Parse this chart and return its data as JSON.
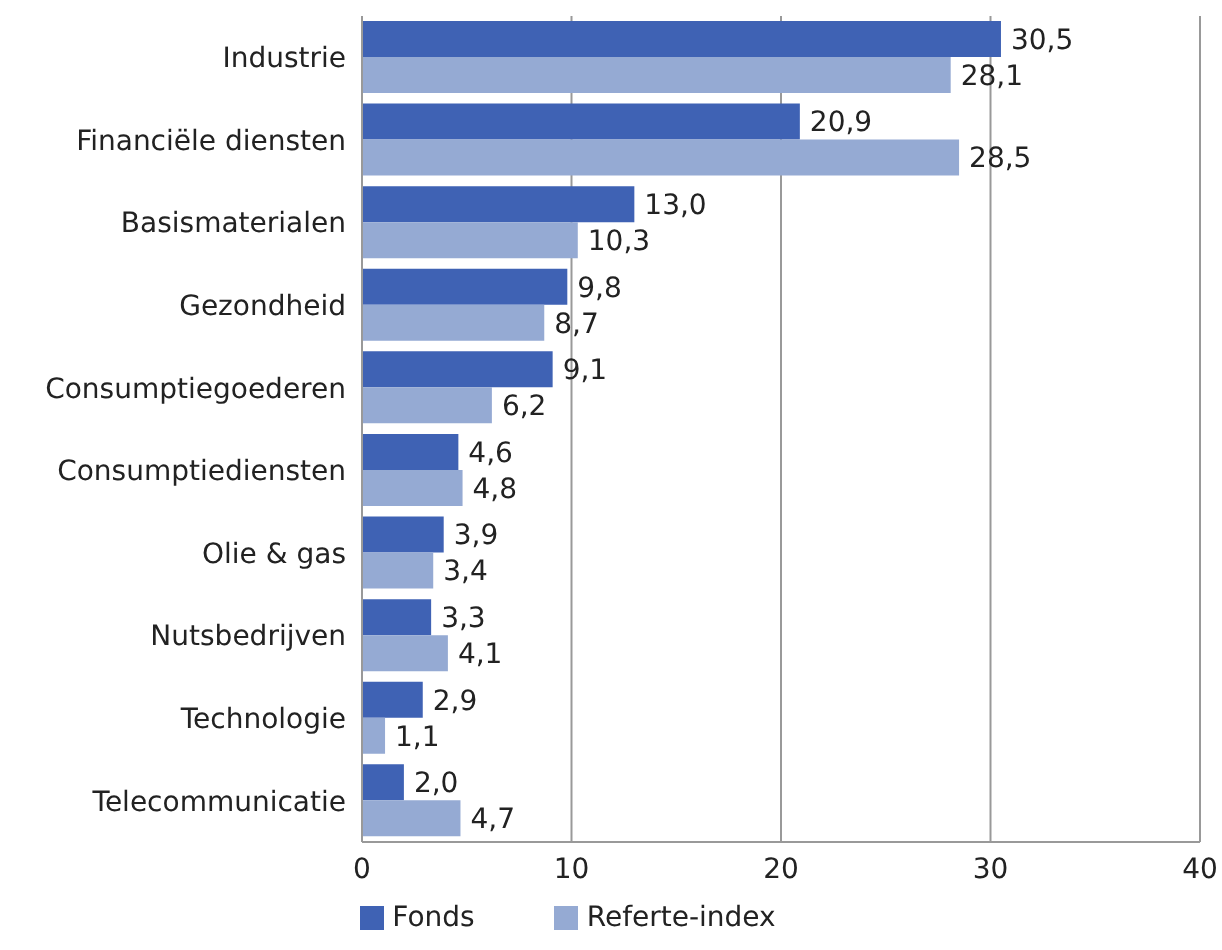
{
  "chart_data": {
    "type": "bar",
    "orientation": "horizontal",
    "categories": [
      "Industrie",
      "Financiële diensten",
      "Basismaterialen",
      "Gezondheid",
      "Consumptiegoederen",
      "Consumptiediensten",
      "Olie & gas",
      "Nutsbedrijven",
      "Technologie",
      "Telecommunicatie"
    ],
    "series": [
      {
        "name": "Fonds",
        "color": "#3f62b4",
        "values": [
          30.5,
          20.9,
          13.0,
          9.8,
          9.1,
          4.6,
          3.9,
          3.3,
          2.9,
          2.0
        ],
        "value_labels": [
          "30,5",
          "20,9",
          "13,0",
          "9,8",
          "9,1",
          "4,6",
          "3,9",
          "3,3",
          "2,9",
          "2,0"
        ]
      },
      {
        "name": "Referte-index",
        "color": "#95aad3",
        "values": [
          28.1,
          28.5,
          10.3,
          8.7,
          6.2,
          4.8,
          3.4,
          4.1,
          1.1,
          4.7
        ],
        "value_labels": [
          "28,1",
          "28,5",
          "10,3",
          "8,7",
          "6,2",
          "4,8",
          "3,4",
          "4,1",
          "1,1",
          "4,7"
        ]
      }
    ],
    "xlim": [
      0,
      40
    ],
    "xticks": [
      0,
      10,
      20,
      30,
      40
    ],
    "grid": "x",
    "legend": "bottom"
  }
}
